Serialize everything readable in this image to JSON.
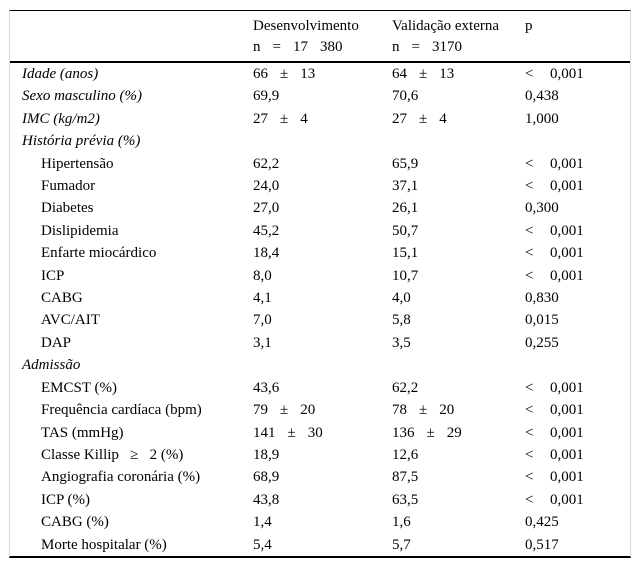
{
  "style": {
    "text_color": "#000000",
    "rule_color": "#000000",
    "faint_edge_color": "#d9d9d9",
    "background": "#ffffff"
  },
  "table": {
    "header": {
      "dev": {
        "title": "Desenvolvimento",
        "n": "n = 17 380"
      },
      "val": {
        "title": "Validação externa",
        "n": "n = 3170"
      },
      "p": "p"
    },
    "rows": [
      {
        "label": "Idade (anos)",
        "italic": true,
        "indent": false,
        "dev": "66 ± 13",
        "val": "64 ± 13",
        "p": "< 0,001"
      },
      {
        "label": "Sexo masculino (%)",
        "italic": true,
        "indent": false,
        "dev": "69,9",
        "val": "70,6",
        "p": "0,438"
      },
      {
        "label": "IMC (kg/m2)",
        "italic": true,
        "indent": false,
        "dev": "27 ± 4",
        "val": "27 ± 4",
        "p": "1,000"
      },
      {
        "label": "História prévia (%)",
        "italic": true,
        "indent": false,
        "dev": "",
        "val": "",
        "p": ""
      },
      {
        "label": "Hipertensão",
        "italic": false,
        "indent": true,
        "dev": "62,2",
        "val": "65,9",
        "p": "< 0,001"
      },
      {
        "label": "Fumador",
        "italic": false,
        "indent": true,
        "dev": "24,0",
        "val": "37,1",
        "p": "< 0,001"
      },
      {
        "label": "Diabetes",
        "italic": false,
        "indent": true,
        "dev": "27,0",
        "val": "26,1",
        "p": "0,300"
      },
      {
        "label": "Dislipidemia",
        "italic": false,
        "indent": true,
        "dev": "45,2",
        "val": "50,7",
        "p": "< 0,001"
      },
      {
        "label": "Enfarte miocárdico",
        "italic": false,
        "indent": true,
        "dev": "18,4",
        "val": "15,1",
        "p": "< 0,001"
      },
      {
        "label": "ICP",
        "italic": false,
        "indent": true,
        "dev": "8,0",
        "val": "10,7",
        "p": "< 0,001"
      },
      {
        "label": "CABG",
        "italic": false,
        "indent": true,
        "dev": "4,1",
        "val": "4,0",
        "p": "0,830"
      },
      {
        "label": "AVC/AIT",
        "italic": false,
        "indent": true,
        "dev": "7,0",
        "val": "5,8",
        "p": "0,015"
      },
      {
        "label": "DAP",
        "italic": false,
        "indent": true,
        "dev": "3,1",
        "val": "3,5",
        "p": "0,255"
      },
      {
        "label": "Admissão",
        "italic": true,
        "indent": false,
        "dev": "",
        "val": "",
        "p": ""
      },
      {
        "label": "EMCST (%)",
        "italic": false,
        "indent": true,
        "dev": "43,6",
        "val": "62,2",
        "p": "< 0,001"
      },
      {
        "label": "Frequência cardíaca (bpm)",
        "italic": false,
        "indent": true,
        "dev": "79 ± 20",
        "val": "78 ± 20",
        "p": "< 0,001"
      },
      {
        "label": "TAS (mmHg)",
        "italic": false,
        "indent": true,
        "dev": "141 ± 30",
        "val": "136 ± 29",
        "p": "< 0,001"
      },
      {
        "label": "Classe Killip   ≥   2 (%)",
        "italic": false,
        "indent": true,
        "dev": "18,9",
        "val": "12,6",
        "p": "< 0,001"
      },
      {
        "label": "Angiografia coronária (%)",
        "italic": false,
        "indent": true,
        "dev": "68,9",
        "val": "87,5",
        "p": "< 0,001"
      },
      {
        "label": "ICP (%)",
        "italic": false,
        "indent": true,
        "dev": "43,8",
        "val": "63,5",
        "p": "< 0,001"
      },
      {
        "label": "CABG (%)",
        "italic": false,
        "indent": true,
        "dev": "1,4",
        "val": "1,6",
        "p": "0,425"
      },
      {
        "label": "Morte hospitalar (%)",
        "italic": false,
        "indent": true,
        "dev": "5,4",
        "val": "5,7",
        "p": "0,517"
      }
    ]
  }
}
